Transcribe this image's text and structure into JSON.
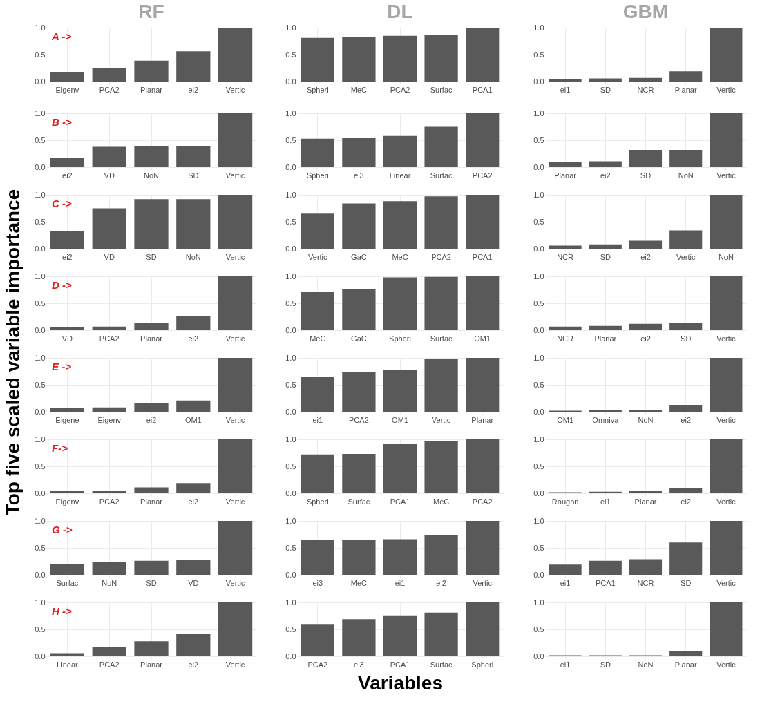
{
  "chart_data": [
    {
      "type": "bar",
      "title": "RF",
      "ylabel": "Top five scaled variable importance",
      "annotations": [
        "A ->"
      ],
      "categories": [
        "Eigenv",
        "PCA2",
        "Planar",
        "ei2",
        "Vertic"
      ],
      "values": [
        0.18,
        0.25,
        0.39,
        0.56,
        1.0
      ],
      "color": "#595959",
      "ylim": [
        -0.05,
        1
      ],
      "yticks": [
        {
          "value": 0,
          "label": "0.0"
        },
        {
          "value": 0.5,
          "label": "0.5"
        },
        {
          "value": 1,
          "label": "1.0"
        }
      ],
      "grid": true
    },
    {
      "type": "bar",
      "title": "DL",
      "categories": [
        "Spheri",
        "MeC",
        "PCA2",
        "Surfac",
        "PCA1"
      ],
      "values": [
        0.81,
        0.82,
        0.85,
        0.86,
        1.0
      ],
      "color": "#595959",
      "ylim": [
        -0.05,
        1
      ],
      "yticks": [
        {
          "value": 0,
          "label": "0.0"
        },
        {
          "value": 0.5,
          "label": "0.5"
        },
        {
          "value": 1,
          "label": "1.0"
        }
      ],
      "grid": true
    },
    {
      "type": "bar",
      "title": "GBM",
      "categories": [
        "ei1",
        "SD",
        "NCR",
        "Planar",
        "Vertic"
      ],
      "values": [
        0.04,
        0.06,
        0.07,
        0.19,
        1.0
      ],
      "color": "#595959",
      "ylim": [
        -0.05,
        1
      ],
      "yticks": [
        {
          "value": 0,
          "label": "0.0"
        },
        {
          "value": 0.5,
          "label": "0.5"
        },
        {
          "value": 1,
          "label": "1.0"
        }
      ],
      "grid": true
    },
    {
      "type": "bar",
      "annotations": [
        "B ->"
      ],
      "categories": [
        "ei2",
        "VD",
        "NoN",
        "SD",
        "Vertic"
      ],
      "values": [
        0.17,
        0.38,
        0.39,
        0.39,
        1.0
      ],
      "color": "#595959",
      "ylim": [
        -0.05,
        1
      ],
      "yticks": [
        {
          "value": 0,
          "label": "0.0"
        },
        {
          "value": 0.5,
          "label": "0.5"
        },
        {
          "value": 1,
          "label": "1.0"
        }
      ],
      "grid": true
    },
    {
      "type": "bar",
      "categories": [
        "Spheri",
        "ei3",
        "Linear",
        "Surfac",
        "PCA2"
      ],
      "values": [
        0.53,
        0.54,
        0.58,
        0.75,
        1.0
      ],
      "color": "#595959",
      "ylim": [
        -0.05,
        1
      ],
      "yticks": [
        {
          "value": 0,
          "label": "0.0"
        },
        {
          "value": 0.5,
          "label": "0.5"
        },
        {
          "value": 1,
          "label": "1.0"
        }
      ],
      "grid": true
    },
    {
      "type": "bar",
      "categories": [
        "Planar",
        "ei2",
        "SD",
        "NoN",
        "Vertic"
      ],
      "values": [
        0.1,
        0.11,
        0.32,
        0.32,
        1.0
      ],
      "color": "#595959",
      "ylim": [
        -0.05,
        1
      ],
      "yticks": [
        {
          "value": 0,
          "label": "0.0"
        },
        {
          "value": 0.5,
          "label": "0.5"
        },
        {
          "value": 1,
          "label": "1.0"
        }
      ],
      "grid": true
    },
    {
      "type": "bar",
      "annotations": [
        "C ->"
      ],
      "categories": [
        "ei2",
        "VD",
        "SD",
        "NoN",
        "Vertic"
      ],
      "values": [
        0.33,
        0.75,
        0.92,
        0.92,
        1.0
      ],
      "color": "#595959",
      "ylim": [
        -0.05,
        1
      ],
      "yticks": [
        {
          "value": 0,
          "label": "0.0"
        },
        {
          "value": 0.5,
          "label": "0.5"
        },
        {
          "value": 1,
          "label": "1.0"
        }
      ],
      "grid": true
    },
    {
      "type": "bar",
      "categories": [
        "Vertic",
        "GaC",
        "MeC",
        "PCA2",
        "PCA1"
      ],
      "values": [
        0.65,
        0.84,
        0.88,
        0.97,
        1.0
      ],
      "color": "#595959",
      "ylim": [
        -0.05,
        1
      ],
      "yticks": [
        {
          "value": 0,
          "label": "0.0"
        },
        {
          "value": 0.5,
          "label": "0.5"
        },
        {
          "value": 1,
          "label": "1.0"
        }
      ],
      "grid": true
    },
    {
      "type": "bar",
      "categories": [
        "NCR",
        "SD",
        "ei2",
        "Vertic",
        "NoN"
      ],
      "values": [
        0.06,
        0.08,
        0.15,
        0.34,
        1.0
      ],
      "color": "#595959",
      "ylim": [
        -0.05,
        1
      ],
      "yticks": [
        {
          "value": 0,
          "label": "0.0"
        },
        {
          "value": 0.5,
          "label": "0.5"
        },
        {
          "value": 1,
          "label": "1.0"
        }
      ],
      "grid": true
    },
    {
      "type": "bar",
      "annotations": [
        "D ->"
      ],
      "categories": [
        "VD",
        "PCA2",
        "Planar",
        "ei2",
        "Vertic"
      ],
      "values": [
        0.06,
        0.07,
        0.14,
        0.27,
        1.0
      ],
      "color": "#595959",
      "ylim": [
        -0.05,
        1
      ],
      "yticks": [
        {
          "value": 0,
          "label": "0.0"
        },
        {
          "value": 0.5,
          "label": "0.5"
        },
        {
          "value": 1,
          "label": "1.0"
        }
      ],
      "grid": true
    },
    {
      "type": "bar",
      "categories": [
        "MeC",
        "GaC",
        "Spheri",
        "Surfac",
        "OM1"
      ],
      "values": [
        0.71,
        0.76,
        0.98,
        0.99,
        1.0
      ],
      "color": "#595959",
      "ylim": [
        -0.05,
        1
      ],
      "yticks": [
        {
          "value": 0,
          "label": "0.0"
        },
        {
          "value": 0.5,
          "label": "0.5"
        },
        {
          "value": 1,
          "label": "1.0"
        }
      ],
      "grid": true
    },
    {
      "type": "bar",
      "categories": [
        "NCR",
        "Planar",
        "ei2",
        "SD",
        "Vertic"
      ],
      "values": [
        0.07,
        0.08,
        0.12,
        0.13,
        1.0
      ],
      "color": "#595959",
      "ylim": [
        -0.05,
        1
      ],
      "yticks": [
        {
          "value": 0,
          "label": "0.0"
        },
        {
          "value": 0.5,
          "label": "0.5"
        },
        {
          "value": 1,
          "label": "1.0"
        }
      ],
      "grid": true
    },
    {
      "type": "bar",
      "annotations": [
        "E ->"
      ],
      "categories": [
        "Eigene",
        "Eigenv",
        "ei2",
        "OM1",
        "Vertic"
      ],
      "values": [
        0.07,
        0.08,
        0.16,
        0.21,
        1.0
      ],
      "color": "#595959",
      "ylim": [
        -0.05,
        1
      ],
      "yticks": [
        {
          "value": 0,
          "label": "0.0"
        },
        {
          "value": 0.5,
          "label": "0.5"
        },
        {
          "value": 1,
          "label": "1.0"
        }
      ],
      "grid": true
    },
    {
      "type": "bar",
      "categories": [
        "ei1",
        "PCA2",
        "OM1",
        "Vertic",
        "Planar"
      ],
      "values": [
        0.64,
        0.74,
        0.77,
        0.98,
        1.0
      ],
      "color": "#595959",
      "ylim": [
        -0.05,
        1
      ],
      "yticks": [
        {
          "value": 0,
          "label": "0.0"
        },
        {
          "value": 0.5,
          "label": "0.5"
        },
        {
          "value": 1,
          "label": "1.0"
        }
      ],
      "grid": true
    },
    {
      "type": "bar",
      "categories": [
        "OM1",
        "Omniva",
        "NoN",
        "ei2",
        "Vertic"
      ],
      "values": [
        0.02,
        0.03,
        0.03,
        0.13,
        1.0
      ],
      "color": "#595959",
      "ylim": [
        -0.05,
        1
      ],
      "yticks": [
        {
          "value": 0,
          "label": "0.0"
        },
        {
          "value": 0.5,
          "label": "0.5"
        },
        {
          "value": 1,
          "label": "1.0"
        }
      ],
      "grid": true
    },
    {
      "type": "bar",
      "annotations": [
        "F->"
      ],
      "categories": [
        "Eigenv",
        "PCA2",
        "Planar",
        "ei2",
        "Vertic"
      ],
      "values": [
        0.04,
        0.05,
        0.11,
        0.19,
        1.0
      ],
      "color": "#595959",
      "ylim": [
        -0.05,
        1
      ],
      "yticks": [
        {
          "value": 0,
          "label": "0.0"
        },
        {
          "value": 0.5,
          "label": "0.5"
        },
        {
          "value": 1,
          "label": "1.0"
        }
      ],
      "grid": true
    },
    {
      "type": "bar",
      "categories": [
        "Spheri",
        "Surfac",
        "PCA1",
        "MeC",
        "PCA2"
      ],
      "values": [
        0.72,
        0.73,
        0.92,
        0.96,
        1.0
      ],
      "color": "#595959",
      "ylim": [
        -0.05,
        1
      ],
      "yticks": [
        {
          "value": 0,
          "label": "0.0"
        },
        {
          "value": 0.5,
          "label": "0.5"
        },
        {
          "value": 1,
          "label": "1.0"
        }
      ],
      "grid": true
    },
    {
      "type": "bar",
      "categories": [
        "Roughn",
        "ei1",
        "Planar",
        "ei2",
        "Vertic"
      ],
      "values": [
        0.02,
        0.03,
        0.04,
        0.09,
        1.0
      ],
      "color": "#595959",
      "ylim": [
        -0.05,
        1
      ],
      "yticks": [
        {
          "value": 0,
          "label": "0.0"
        },
        {
          "value": 0.5,
          "label": "0.5"
        },
        {
          "value": 1,
          "label": "1.0"
        }
      ],
      "grid": true
    },
    {
      "type": "bar",
      "annotations": [
        "G ->"
      ],
      "categories": [
        "Surfac",
        "NoN",
        "SD",
        "VD",
        "Vertic"
      ],
      "values": [
        0.2,
        0.24,
        0.26,
        0.28,
        1.0
      ],
      "color": "#595959",
      "ylim": [
        -0.05,
        1
      ],
      "yticks": [
        {
          "value": 0,
          "label": "0.0"
        },
        {
          "value": 0.5,
          "label": "0.5"
        },
        {
          "value": 1,
          "label": "1.0"
        }
      ],
      "grid": true
    },
    {
      "type": "bar",
      "categories": [
        "ei3",
        "MeC",
        "ei1",
        "ei2",
        "Vertic"
      ],
      "values": [
        0.65,
        0.65,
        0.66,
        0.74,
        1.0
      ],
      "color": "#595959",
      "ylim": [
        -0.05,
        1
      ],
      "yticks": [
        {
          "value": 0,
          "label": "0.0"
        },
        {
          "value": 0.5,
          "label": "0.5"
        },
        {
          "value": 1,
          "label": "1.0"
        }
      ],
      "grid": true
    },
    {
      "type": "bar",
      "categories": [
        "ei1",
        "PCA1",
        "NCR",
        "SD",
        "Vertic"
      ],
      "values": [
        0.19,
        0.26,
        0.29,
        0.6,
        1.0
      ],
      "color": "#595959",
      "ylim": [
        -0.05,
        1
      ],
      "yticks": [
        {
          "value": 0,
          "label": "0.0"
        },
        {
          "value": 0.5,
          "label": "0.5"
        },
        {
          "value": 1,
          "label": "1.0"
        }
      ],
      "grid": true
    },
    {
      "type": "bar",
      "annotations": [
        "H ->"
      ],
      "categories": [
        "Linear",
        "PCA2",
        "Planar",
        "ei2",
        "Vertic"
      ],
      "values": [
        0.06,
        0.18,
        0.28,
        0.41,
        1.0
      ],
      "color": "#595959",
      "ylim": [
        -0.05,
        1
      ],
      "yticks": [
        {
          "value": 0,
          "label": "0.0"
        },
        {
          "value": 0.5,
          "label": "0.5"
        },
        {
          "value": 1,
          "label": "1.0"
        }
      ],
      "grid": true
    },
    {
      "type": "bar",
      "xlabel": "Variables",
      "categories": [
        "PCA2",
        "ei3",
        "PCA1",
        "Surfac",
        "Spheri"
      ],
      "values": [
        0.6,
        0.69,
        0.76,
        0.81,
        1.0
      ],
      "color": "#595959",
      "ylim": [
        -0.05,
        1
      ],
      "yticks": [
        {
          "value": 0,
          "label": "0.0"
        },
        {
          "value": 0.5,
          "label": "0.5"
        },
        {
          "value": 1,
          "label": "1.0"
        }
      ],
      "grid": true
    },
    {
      "type": "bar",
      "categories": [
        "ei1",
        "SD",
        "NoN",
        "Planar",
        "Vertic"
      ],
      "values": [
        0.02,
        0.02,
        0.02,
        0.09,
        1.0
      ],
      "color": "#595959",
      "ylim": [
        -0.05,
        1
      ],
      "yticks": [
        {
          "value": 0,
          "label": "0.0"
        },
        {
          "value": 0.5,
          "label": "0.5"
        },
        {
          "value": 1,
          "label": "1.0"
        }
      ],
      "grid": true
    }
  ]
}
